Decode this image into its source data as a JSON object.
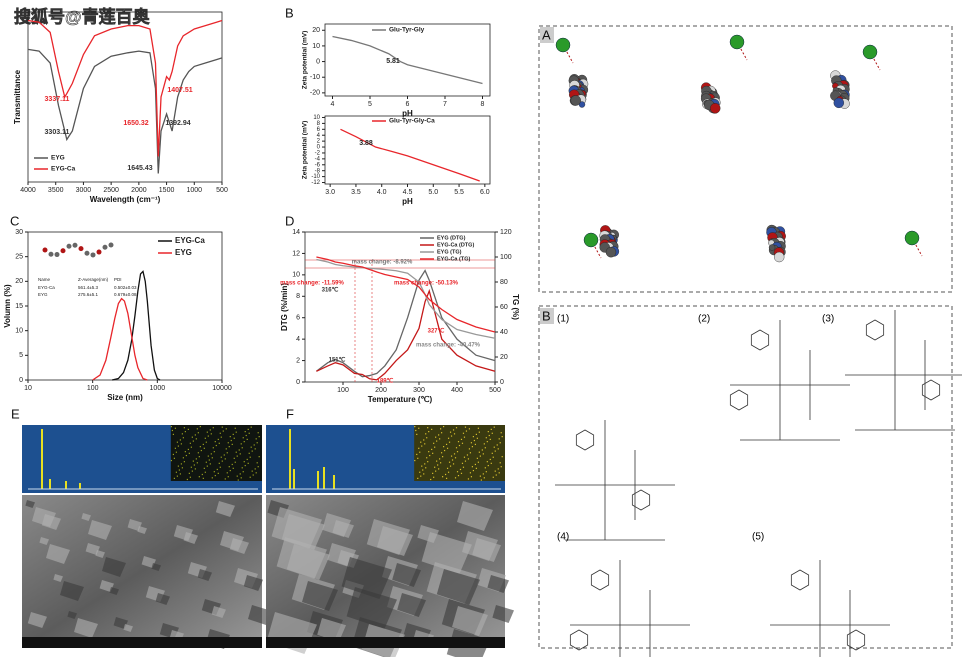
{
  "watermark": "搜狐号@青莲百奥",
  "chart_data": [
    {
      "type": "line",
      "xlabel": "Wavelength (cm⁻¹)",
      "ylabel": "Transmittance",
      "xlim": [
        4000,
        500
      ],
      "xticks": [
        4000,
        3500,
        3000,
        2500,
        2000,
        1500,
        1000,
        500
      ],
      "ylim": [
        0,
        100
      ],
      "x": [
        4000,
        3800,
        3600,
        3450,
        3337,
        3300,
        3200,
        3000,
        2800,
        2500,
        2200,
        2000,
        1800,
        1700,
        1650,
        1600,
        1500,
        1450,
        1400,
        1300,
        1200,
        1100,
        1000,
        800,
        600,
        500
      ],
      "series": [
        {
          "name": "EYG",
          "color": "#555555",
          "values": [
            78,
            77,
            70,
            45,
            30,
            25,
            30,
            55,
            68,
            74,
            76,
            77,
            76,
            55,
            5,
            30,
            40,
            35,
            30,
            50,
            60,
            65,
            68,
            70,
            72,
            73
          ]
        },
        {
          "name": "EYG-Ca",
          "color": "#e8262b",
          "values": [
            95,
            94,
            88,
            65,
            50,
            52,
            58,
            75,
            86,
            90,
            92,
            92,
            90,
            70,
            15,
            50,
            62,
            60,
            65,
            80,
            86,
            88,
            90,
            92,
            94,
            95
          ]
        }
      ],
      "annotations": [
        {
          "text": "3337.11",
          "color": "#e8262b"
        },
        {
          "text": "3303.11",
          "color": "#333333"
        },
        {
          "text": "1650.32",
          "color": "#e8262b"
        },
        {
          "text": "1645.43",
          "color": "#333333"
        },
        {
          "text": "1407.51",
          "color": "#e8262b"
        },
        {
          "text": "1392.94",
          "color": "#333333"
        }
      ]
    },
    {
      "type": "line",
      "panel_label": "B",
      "xlabel": "pH",
      "ylabel": "Zeta potential (mV)",
      "xlim": [
        3.8,
        8.2
      ],
      "xticks": [
        4,
        5,
        6,
        7,
        8
      ],
      "ylim": [
        -22,
        24
      ],
      "yticks": [
        -20,
        -10,
        0,
        10,
        20
      ],
      "x": [
        4,
        4.5,
        5,
        5.5,
        5.81,
        6,
        7,
        8
      ],
      "series": [
        {
          "name": "Glu-Tyr-Gly",
          "color": "#777777",
          "values": [
            16,
            13.5,
            10,
            5,
            0,
            -2,
            -8,
            -14
          ]
        }
      ],
      "annotations": [
        {
          "text": "5.81",
          "color": "#222222"
        }
      ]
    },
    {
      "type": "line",
      "xlabel": "pH",
      "ylabel": "Zeta potential (mV)",
      "xlim": [
        2.9,
        6.1
      ],
      "xticks": [
        {
          "value": 3,
          "label": "3.0"
        },
        3.5,
        {
          "value": 4,
          "label": "4.0"
        },
        4.5,
        {
          "value": 5,
          "label": "5.0"
        },
        5.5,
        {
          "value": 6,
          "label": "6.0"
        }
      ],
      "ylim": [
        -12.5,
        10.5
      ],
      "yticks": [
        10,
        8,
        6,
        4,
        2,
        0,
        -2,
        -4,
        -6,
        -8,
        -10,
        -12
      ],
      "x": [
        3.2,
        3.5,
        3.88,
        4.2,
        4.5,
        5,
        5.5,
        5.9
      ],
      "series": [
        {
          "name": "Glu-Tyr-Gly-Ca",
          "color": "#e8262b",
          "values": [
            6,
            3.5,
            0,
            -1.5,
            -3,
            -6,
            -9,
            -11.5
          ]
        }
      ],
      "annotations": [
        {
          "text": "3.88",
          "color": "#222222"
        }
      ]
    },
    {
      "type": "line",
      "panel_label": "C",
      "xlabel": "Size (nm)",
      "ylabel": "Volumn (%)",
      "xlog": true,
      "xlim": [
        10,
        10000
      ],
      "xticks": [
        10,
        100,
        1000,
        10000
      ],
      "ylim": [
        0,
        30
      ],
      "yticks": [
        0,
        5,
        10,
        15,
        20,
        25,
        30
      ],
      "series": [
        {
          "name": "EYG-Ca",
          "color": "#111111",
          "x": [
            200,
            250,
            300,
            350,
            400,
            450,
            500,
            550,
            600,
            650,
            700,
            800,
            900,
            1000,
            1100
          ],
          "values": [
            0,
            0.3,
            1.5,
            4,
            8,
            13,
            18,
            21.5,
            22,
            20,
            16,
            7,
            2,
            0.3,
            0
          ]
        },
        {
          "name": "EYG",
          "color": "#e8262b",
          "x": [
            100,
            130,
            160,
            190,
            220,
            250,
            280,
            310,
            350,
            400,
            450,
            500,
            600,
            700
          ],
          "values": [
            0,
            1,
            4,
            8.5,
            12.5,
            15.5,
            16.5,
            16,
            13.5,
            9,
            5,
            2.5,
            0.3,
            0
          ]
        }
      ],
      "inset_table": {
        "header": [
          "Name",
          "Z-Average(nm)",
          "PDI"
        ],
        "rows": [
          [
            "EYG-Ca",
            "561.4±5.3",
            "0.502±0.03"
          ],
          [
            "EYG",
            "275.6±5.1",
            "0.679±0.08"
          ]
        ]
      }
    },
    {
      "type": "line",
      "panel_label": "D",
      "xlabel": "Temperature (℃)",
      "ylabel": "DTG (%/min)",
      "y2label": "TG (%)",
      "xlim": [
        0,
        500
      ],
      "xticks": [
        100,
        200,
        300,
        400,
        500
      ],
      "ylim": [
        0,
        14
      ],
      "yticks": [
        0,
        2,
        4,
        6,
        8,
        10,
        12,
        14
      ],
      "y2lim": [
        0,
        120
      ],
      "y2ticks": [
        0,
        20,
        40,
        60,
        80,
        100,
        120
      ],
      "x": [
        30,
        60,
        80,
        100,
        130,
        151,
        170,
        189,
        210,
        240,
        270,
        300,
        316,
        327,
        360,
        400,
        450,
        500
      ],
      "series": [
        {
          "name": "EYG (DTG)",
          "color": "#666666",
          "values": [
            1,
            1.8,
            2.1,
            1.8,
            1,
            0.5,
            0.6,
            0.8,
            1.5,
            3,
            6,
            9.5,
            10.4,
            9.5,
            6,
            4,
            2.5,
            2
          ]
        },
        {
          "name": "EYG-Ca (DTG)",
          "color": "#c41818",
          "values": [
            1,
            1.5,
            1.8,
            1.6,
            0.8,
            0.7,
            0.3,
            0.2,
            0.8,
            2,
            3,
            5,
            7.5,
            8.5,
            4,
            2.5,
            1.5,
            1
          ]
        },
        {
          "name": "EYG (TG)",
          "color": "#999999",
          "axis": "y2",
          "values": [
            98,
            96,
            94,
            93,
            92,
            91.5,
            91,
            90.5,
            90,
            89,
            87,
            80,
            70,
            62,
            50,
            42,
            38,
            35
          ]
        },
        {
          "name": "EYG-Ca (TG)",
          "color": "#e8262b",
          "axis": "y2",
          "values": [
            100,
            98,
            96,
            95,
            93,
            92,
            90,
            88,
            86,
            84,
            82,
            76,
            70,
            66,
            58,
            50,
            44,
            40
          ]
        }
      ],
      "annotations": [
        {
          "text": "mass change: -8.92%",
          "color": "#777777"
        },
        {
          "text": "mass change: -11.59%",
          "color": "#e8262b"
        },
        {
          "text": "mass change: -50.13%",
          "color": "#e8262b"
        },
        {
          "text": "mass change: -40.47%",
          "color": "#888888"
        },
        {
          "text": "316℃",
          "color": "#333333"
        },
        {
          "text": "327℃",
          "color": "#e8262b"
        },
        {
          "text": "151℃",
          "color": "#333333"
        },
        {
          "text": "189℃",
          "color": "#e8262b"
        }
      ]
    }
  ],
  "molecular_panel": {
    "label": "A"
  },
  "structure_panel": {
    "label": "B",
    "structures": [
      "(1)",
      "(2)",
      "(3)",
      "(4)",
      "(5)"
    ]
  },
  "eds_panels": [
    {
      "label": "E"
    },
    {
      "label": "F"
    }
  ]
}
